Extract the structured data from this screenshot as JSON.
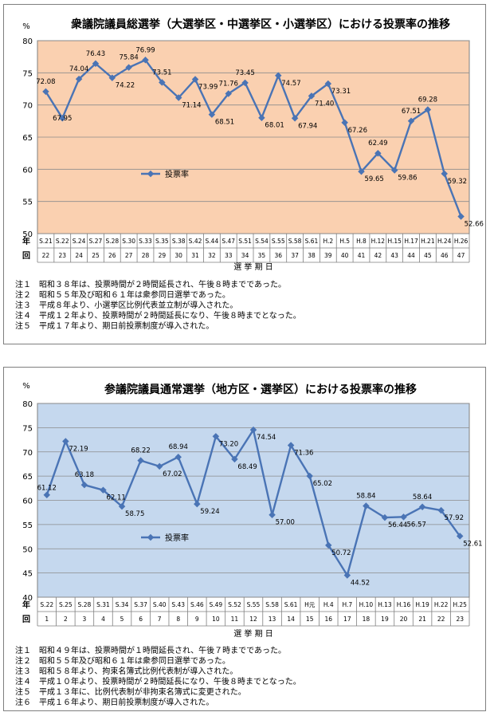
{
  "chart_data": [
    {
      "type": "line",
      "title": "衆議院議員総選挙（大選挙区・中選挙区・小選挙区）における投票率の推移",
      "ylabel": "%",
      "xlabel": "選 挙 期 日",
      "ylim": [
        50,
        80
      ],
      "yticks": [
        50,
        55,
        60,
        65,
        70,
        75,
        80
      ],
      "grid": true,
      "legend_position": "center-left",
      "background_color": "#FAD0B0",
      "line_color": "#4A74B5",
      "row_labels": [
        "年",
        "回"
      ],
      "categories": [
        "S.21",
        "S.22",
        "S.24",
        "S.27",
        "S.28",
        "S.30",
        "S.33",
        "S.35",
        "S.38",
        "S.42",
        "S.44",
        "S.47",
        "S.51",
        "S.54",
        "S.55",
        "S.58",
        "S.61",
        "H.2",
        "H.5",
        "H.8",
        "H.12",
        "H.15",
        "H.17",
        "H.21",
        "H.24",
        "H.26"
      ],
      "rounds": [
        "22",
        "23",
        "24",
        "25",
        "26",
        "27",
        "28",
        "29",
        "30",
        "31",
        "32",
        "33",
        "34",
        "35",
        "36",
        "37",
        "38",
        "39",
        "40",
        "41",
        "42",
        "43",
        "44",
        "45",
        "46",
        "47"
      ],
      "series": [
        {
          "name": "投票率",
          "values": [
            72.08,
            67.95,
            74.04,
            76.43,
            74.22,
            75.84,
            76.99,
            73.51,
            71.14,
            73.99,
            68.51,
            71.76,
            73.45,
            68.01,
            74.57,
            67.94,
            71.4,
            73.31,
            67.26,
            59.65,
            62.49,
            59.86,
            67.51,
            69.28,
            59.32,
            52.66
          ],
          "data_labels": [
            "72.08",
            "67.95",
            "74.04",
            "76.43",
            "74.22",
            "75.84",
            "76.99",
            "73.51",
            "71.14",
            "73.99",
            "68.51",
            "71.76",
            "73.45",
            "68.01",
            "74.57",
            "67.94",
            "71.40",
            "73.31",
            "67.26",
            "59.65",
            "62.49",
            "59.86",
            "67.51",
            "69.28",
            "59.32",
            "52.66"
          ]
        }
      ],
      "notes": [
        "注１　昭和３８年は、投票時間が２時間延長され、午後８時までであった。",
        "注２　昭和５５年及び昭和６１年は衆参同日選挙であった。",
        "注３　平成８年より、小選挙区比例代表並立制が導入された。",
        "注４　平成１２年より、投票時間が２時間延長になり、午後８時までとなった。",
        "注５　平成１７年より、期日前投票制度が導入された。"
      ]
    },
    {
      "type": "line",
      "title": "参議院議員通常選挙（地方区・選挙区）における投票率の推移",
      "ylabel": "%",
      "xlabel": "選 挙 期 日",
      "ylim": [
        40,
        80
      ],
      "yticks": [
        40,
        45,
        50,
        55,
        60,
        65,
        70,
        75,
        80
      ],
      "grid": true,
      "legend_position": "center-left",
      "background_color": "#C5D8EE",
      "line_color": "#4A74B5",
      "row_labels": [
        "年",
        "回"
      ],
      "categories": [
        "S.22",
        "S.25",
        "S.28",
        "S.31",
        "S.34",
        "S.37",
        "S.40",
        "S.43",
        "S.46",
        "S.49",
        "S.52",
        "S.55",
        "S.58",
        "S.61",
        "H元",
        "H.4",
        "H.7",
        "H.10",
        "H.13",
        "H.16",
        "H.19",
        "H.22",
        "H.25"
      ],
      "rounds": [
        "1",
        "2",
        "3",
        "4",
        "5",
        "6",
        "7",
        "8",
        "9",
        "10",
        "11",
        "12",
        "13",
        "14",
        "15",
        "16",
        "17",
        "18",
        "19",
        "20",
        "21",
        "22",
        "23"
      ],
      "series": [
        {
          "name": "投票率",
          "values": [
            61.12,
            72.19,
            63.18,
            62.11,
            58.75,
            68.22,
            67.02,
            68.94,
            59.24,
            73.2,
            68.49,
            74.54,
            57.0,
            71.36,
            65.02,
            50.72,
            44.52,
            58.84,
            56.44,
            56.57,
            58.64,
            57.92,
            52.61
          ],
          "data_labels": [
            "61.12",
            "72.19",
            "63.18",
            "62.11",
            "58.75",
            "68.22",
            "67.02",
            "68.94",
            "59.24",
            "73.20",
            "68.49",
            "74.54",
            "57.00",
            "71.36",
            "65.02",
            "50.72",
            "44.52",
            "58.84",
            "56.44",
            "56.57",
            "58.64",
            "57.92",
            "52.61"
          ]
        }
      ],
      "notes": [
        "注１　昭和４９年は、投票時間が１時間延長され、午後７時までであった。",
        "注２　昭和５５年及び昭和６１年は衆参同日選挙であった。",
        "注３　昭和５８年より、拘束名簿式比例代表制が導入された。",
        "注４　平成１０年より、投票時間が２時間延長になり、午後８時までとなった。",
        "注５　平成１３年に、比例代表制が非拘束名簿式に変更された。",
        "注６　平成１６年より、期日前投票制度が導入された。"
      ]
    }
  ]
}
